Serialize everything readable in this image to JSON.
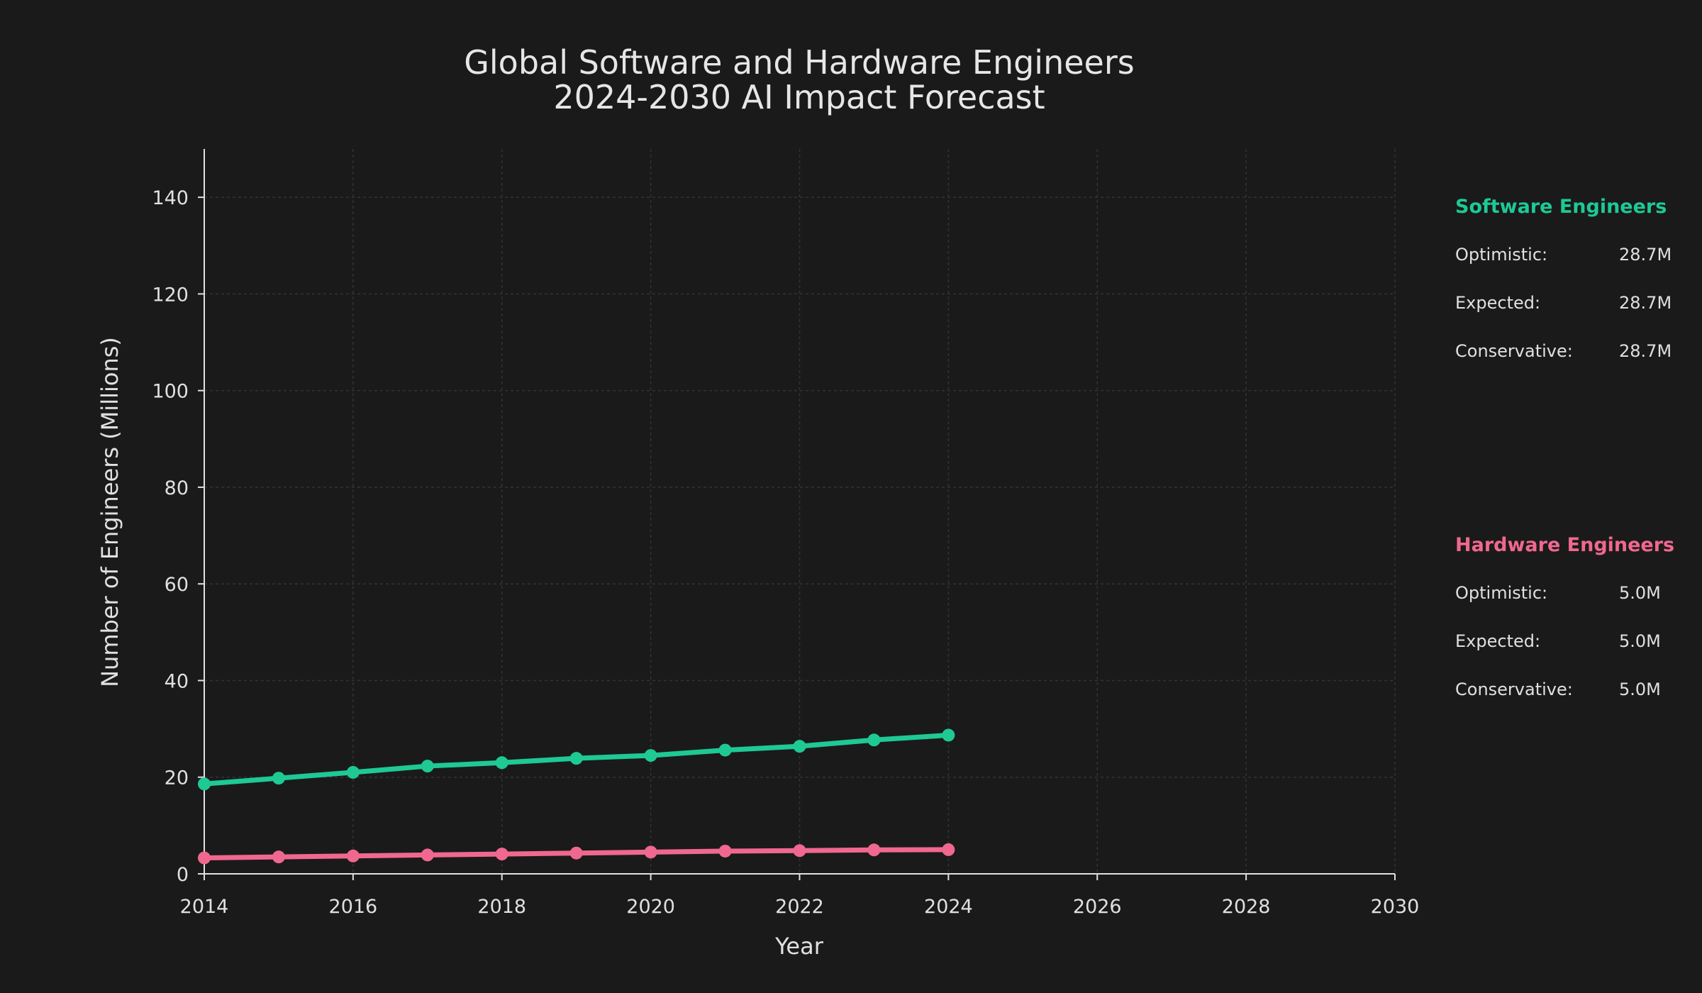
{
  "chart_data": {
    "type": "line",
    "title": [
      "Global Software and Hardware Engineers",
      "2024-2030 AI Impact Forecast"
    ],
    "xlabel": "Year",
    "ylabel": "Number of Engineers (Millions)",
    "xlim": [
      2014,
      2030
    ],
    "ylim": [
      0,
      150
    ],
    "x_ticks": [
      2014,
      2016,
      2018,
      2020,
      2022,
      2024,
      2026,
      2028,
      2030
    ],
    "y_ticks": [
      0,
      20,
      40,
      60,
      80,
      100,
      120,
      140
    ],
    "grid": true,
    "x": [
      2014,
      2015,
      2016,
      2017,
      2018,
      2019,
      2020,
      2021,
      2022,
      2023,
      2024
    ],
    "series": [
      {
        "name": "Software Engineers",
        "color": "#1ec994",
        "values": [
          18.6,
          19.8,
          21.0,
          22.3,
          23.0,
          23.9,
          24.5,
          25.6,
          26.4,
          27.7,
          28.7
        ]
      },
      {
        "name": "Hardware Engineers",
        "color": "#f0688f",
        "values": [
          3.3,
          3.5,
          3.7,
          3.9,
          4.1,
          4.3,
          4.5,
          4.7,
          4.8,
          4.95,
          5.0
        ]
      }
    ],
    "panels": [
      {
        "title": "Software Engineers",
        "color": "#1ec994",
        "rows": [
          {
            "label": "Optimistic:",
            "value": "28.7M"
          },
          {
            "label": "Expected:",
            "value": "28.7M"
          },
          {
            "label": "Conservative:",
            "value": "28.7M"
          }
        ]
      },
      {
        "title": "Hardware Engineers",
        "color": "#f0688f",
        "rows": [
          {
            "label": "Optimistic:",
            "value": "5.0M"
          },
          {
            "label": "Expected:",
            "value": "5.0M"
          },
          {
            "label": "Conservative:",
            "value": "5.0M"
          }
        ]
      }
    ]
  }
}
